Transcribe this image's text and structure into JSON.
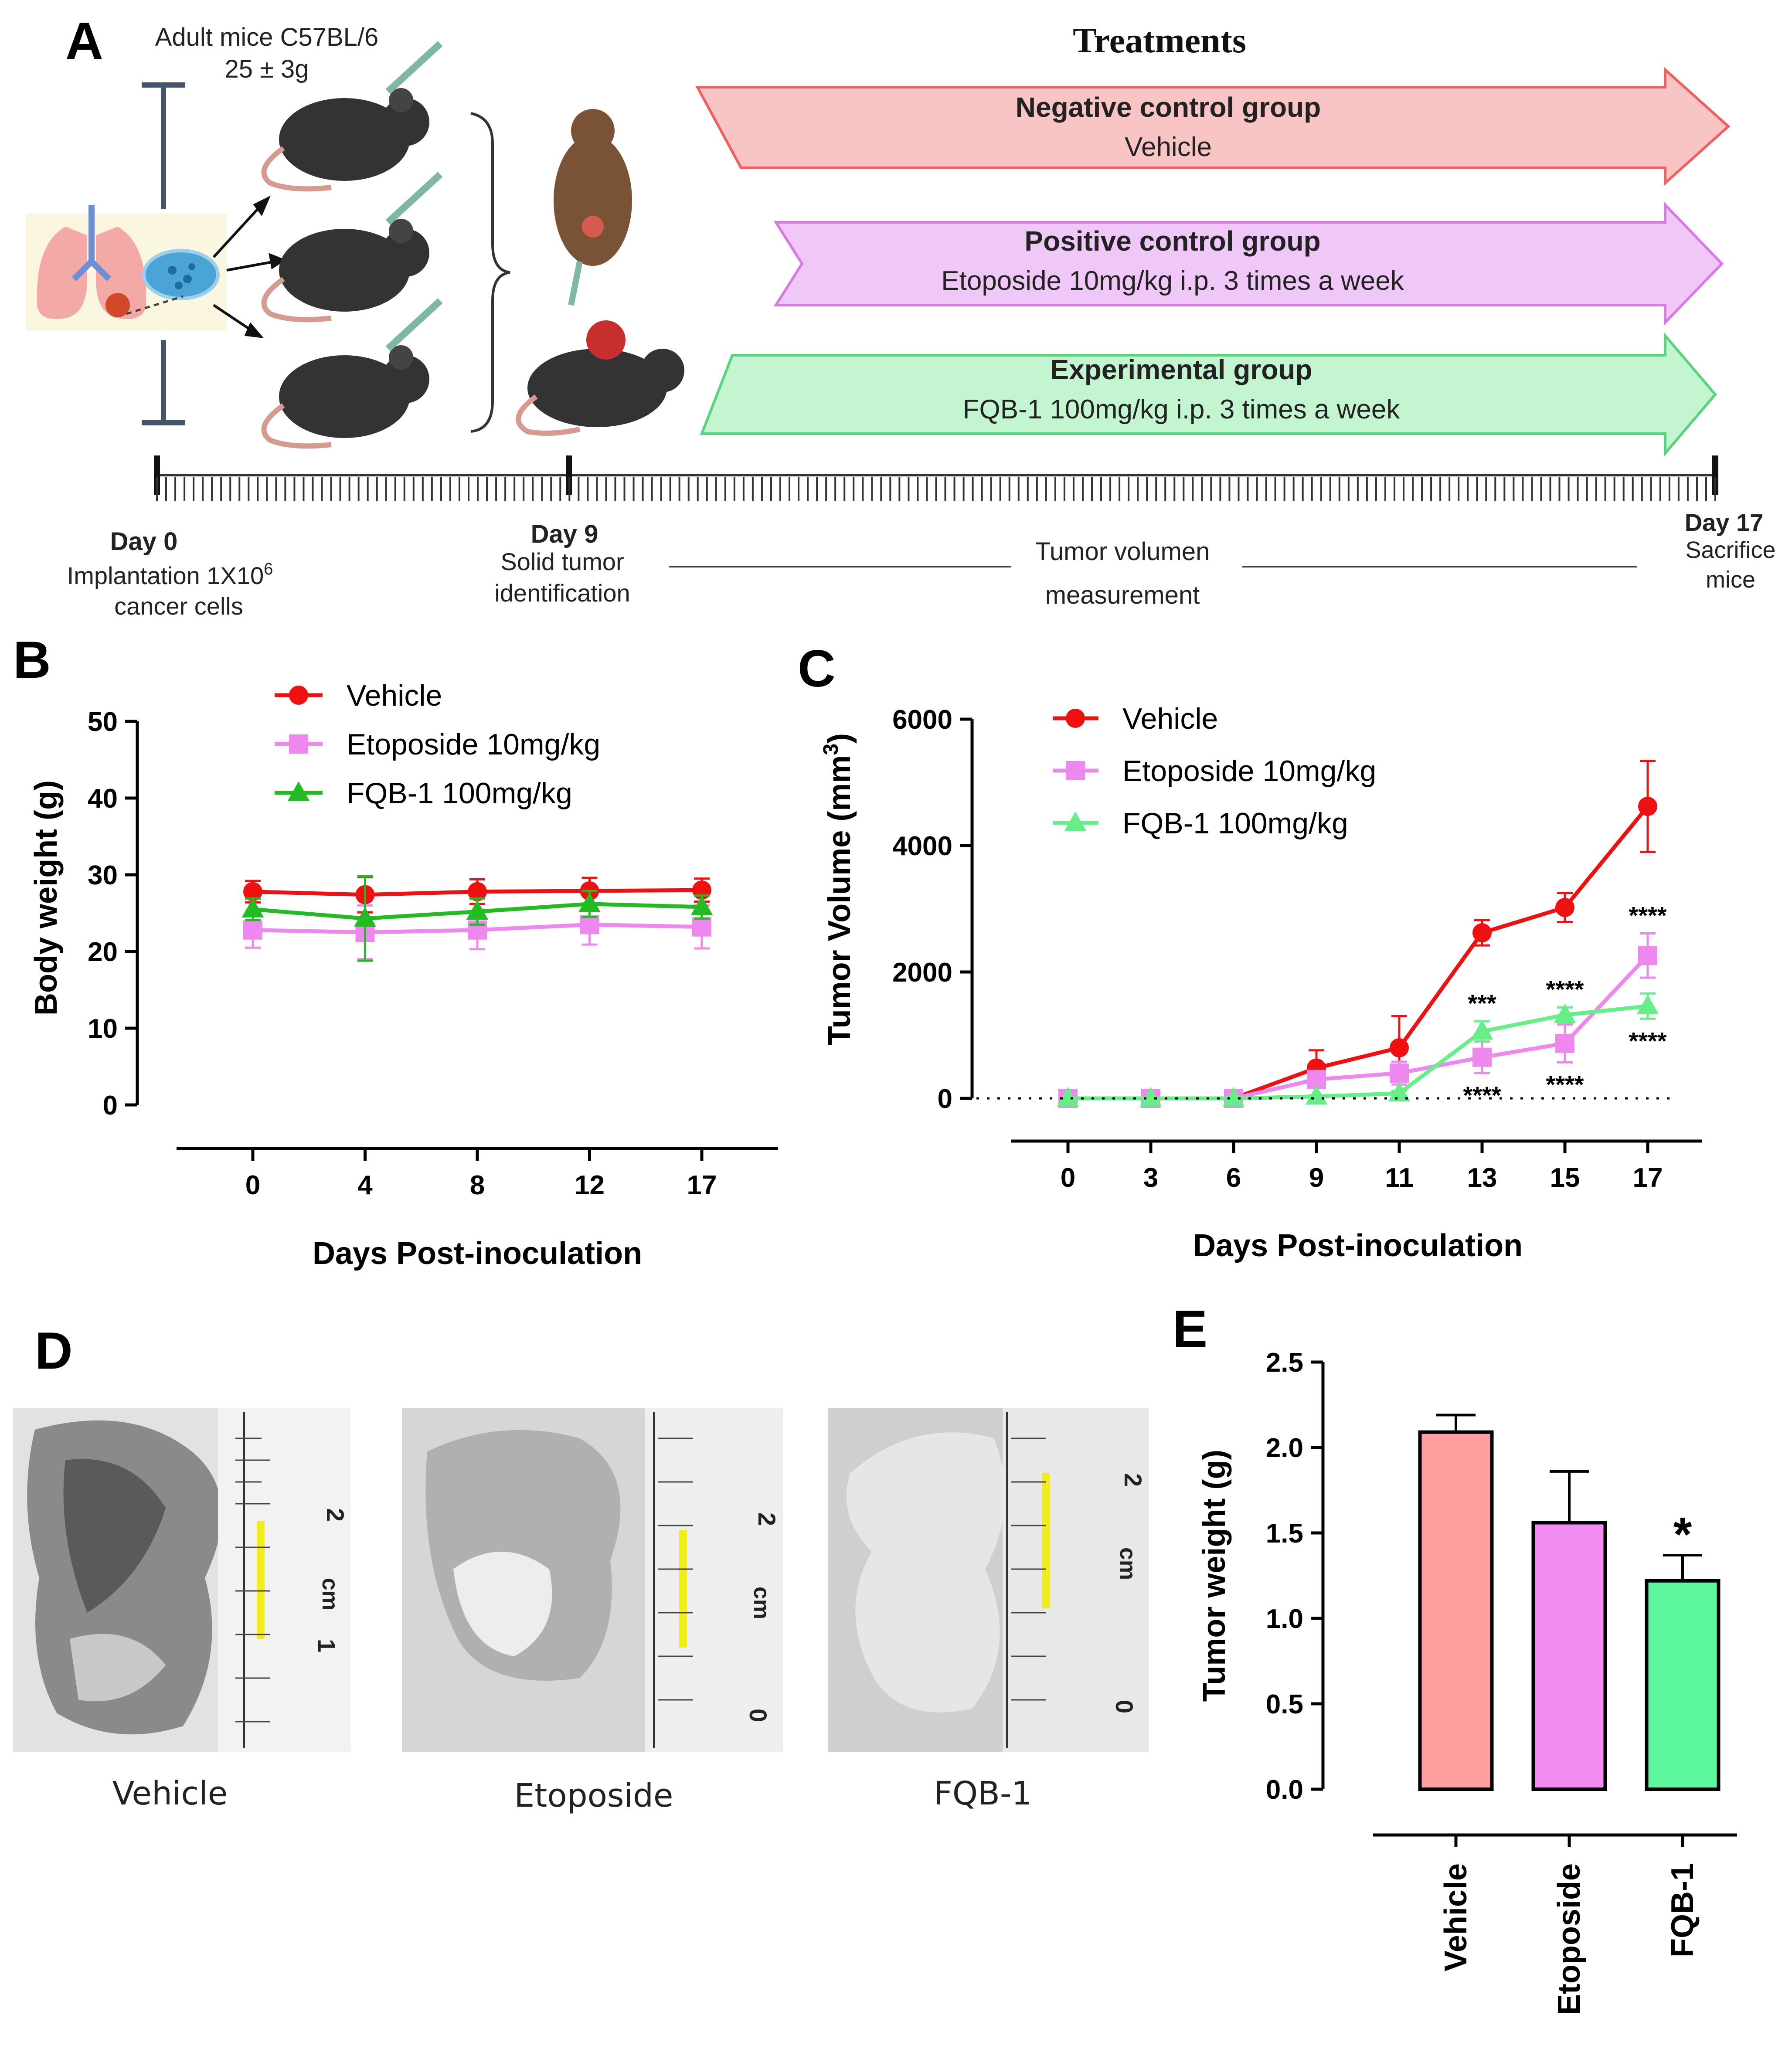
{
  "colors": {
    "vehicle": "#ee1111",
    "etoposide": "#ee88ee",
    "fqb": "#22bb22",
    "fqb_light": "#66ee88",
    "neg_arrow": "#f8c4c4",
    "pos_arrow": "#f0c8f8",
    "exp_arrow": "#c2f5d0",
    "bar_vehicle": "#ff9e9e",
    "bar_etoposide": "#f28cf2",
    "bar_fqb": "#5cf79c"
  },
  "panelA": {
    "letter": "A",
    "mice_label_1": "Adult mice C57BL/6",
    "mice_label_2": "25 ± 3g",
    "treatments_title": "Treatments",
    "groups": [
      {
        "name": "Negative control group",
        "detail": "Vehicle"
      },
      {
        "name": "Positive control group",
        "detail": "Etoposide 10mg/kg i.p. 3 times a week"
      },
      {
        "name": "Experimental group",
        "detail": "FQB-1 100mg/kg i.p. 3 times a week"
      }
    ],
    "timeline": {
      "day0_title": "Day 0",
      "day0_line1": "Implantation 1X10",
      "day0_sup": "6",
      "day0_line2": "cancer cells",
      "day9_title": "Day 9",
      "day9_line1": "Solid tumor",
      "day9_line2": "identification",
      "measure_line1": "Tumor volumen",
      "measure_line2": "measurement",
      "day17_title": "Day 17",
      "day17_line1": "Sacrifice",
      "day17_line2": "mice"
    }
  },
  "panelD": {
    "letter": "D",
    "captions": [
      "Vehicle",
      "Etoposide",
      "FQB-1"
    ],
    "ruler_marks": [
      "2",
      "cm",
      "1",
      "0"
    ]
  },
  "chart_data": [
    {
      "panel": "B",
      "type": "line",
      "title": "",
      "xlabel": "Days Post-inoculation",
      "ylabel": "Body weight (g)",
      "categories": [
        "0",
        "4",
        "8",
        "12",
        "17"
      ],
      "ylim": [
        0,
        50
      ],
      "yticks": [
        "0",
        "10",
        "20",
        "30",
        "40",
        "50"
      ],
      "legend_position": "top-left",
      "series": [
        {
          "name": "Vehicle",
          "marker": "circle",
          "values": [
            27.8,
            27.4,
            27.8,
            27.9,
            28.0
          ],
          "errors": [
            1.4,
            2.3,
            1.6,
            1.7,
            1.5
          ]
        },
        {
          "name": "Etoposide 10mg/kg",
          "marker": "square",
          "values": [
            22.8,
            22.5,
            22.8,
            23.5,
            23.2
          ],
          "errors": [
            2.3,
            3.5,
            2.5,
            2.6,
            2.8
          ]
        },
        {
          "name": "FQB-1 100mg/kg",
          "marker": "triangle",
          "values": [
            25.5,
            24.3,
            25.2,
            26.2,
            25.8
          ],
          "errors": [
            1.4,
            5.5,
            1.7,
            1.7,
            1.5
          ]
        }
      ]
    },
    {
      "panel": "C",
      "type": "line",
      "title": "",
      "xlabel": "Days Post-inoculation",
      "ylabel_main": "Tumor Volume (mm",
      "ylabel_sup": "3",
      "ylabel_end": ")",
      "categories": [
        "0",
        "3",
        "6",
        "9",
        "11",
        "13",
        "15",
        "17"
      ],
      "ylim": [
        0,
        6000
      ],
      "yticks": [
        "0",
        "2000",
        "4000",
        "6000"
      ],
      "legend_position": "top-left",
      "series": [
        {
          "name": "Vehicle",
          "marker": "circle",
          "values": [
            0,
            0,
            0,
            480,
            800,
            2620,
            3020,
            4620
          ],
          "errors": [
            0,
            0,
            0,
            280,
            500,
            200,
            230,
            720
          ]
        },
        {
          "name": "Etoposide 10mg/kg",
          "marker": "square",
          "values": [
            0,
            0,
            0,
            300,
            400,
            650,
            870,
            2260
          ],
          "errors": [
            0,
            0,
            0,
            120,
            180,
            250,
            300,
            350
          ]
        },
        {
          "name": "FQB-1 100mg/kg",
          "marker": "triangle",
          "values": [
            0,
            0,
            0,
            30,
            80,
            1060,
            1320,
            1460
          ],
          "errors": [
            0,
            0,
            0,
            20,
            40,
            160,
            120,
            200
          ]
        }
      ],
      "annotations": [
        {
          "text": "***",
          "category": "13",
          "series": "FQB-1 100mg/kg",
          "position": "above"
        },
        {
          "text": "****",
          "category": "13",
          "series": "Etoposide 10mg/kg",
          "position": "below"
        },
        {
          "text": "****",
          "category": "15",
          "series": "FQB-1 100mg/kg",
          "position": "above"
        },
        {
          "text": "****",
          "category": "15",
          "series": "Etoposide 10mg/kg",
          "position": "below"
        },
        {
          "text": "****",
          "category": "17",
          "series": "Etoposide 10mg/kg",
          "position": "above"
        },
        {
          "text": "****",
          "category": "17",
          "series": "FQB-1 100mg/kg",
          "position": "below"
        }
      ]
    },
    {
      "panel": "E",
      "type": "bar",
      "title": "",
      "xlabel": "",
      "ylabel": "Tumor weight (g)",
      "categories": [
        "Vehicle",
        "Etoposide",
        "FQB-1"
      ],
      "values": [
        2.09,
        1.56,
        1.22
      ],
      "errors": [
        0.1,
        0.3,
        0.15
      ],
      "ylim": [
        0,
        2.5
      ],
      "yticks": [
        "0.0",
        "0.5",
        "1.0",
        "1.5",
        "2.0",
        "2.5"
      ],
      "annotations": [
        {
          "text": "*",
          "category": "FQB-1"
        }
      ]
    }
  ]
}
